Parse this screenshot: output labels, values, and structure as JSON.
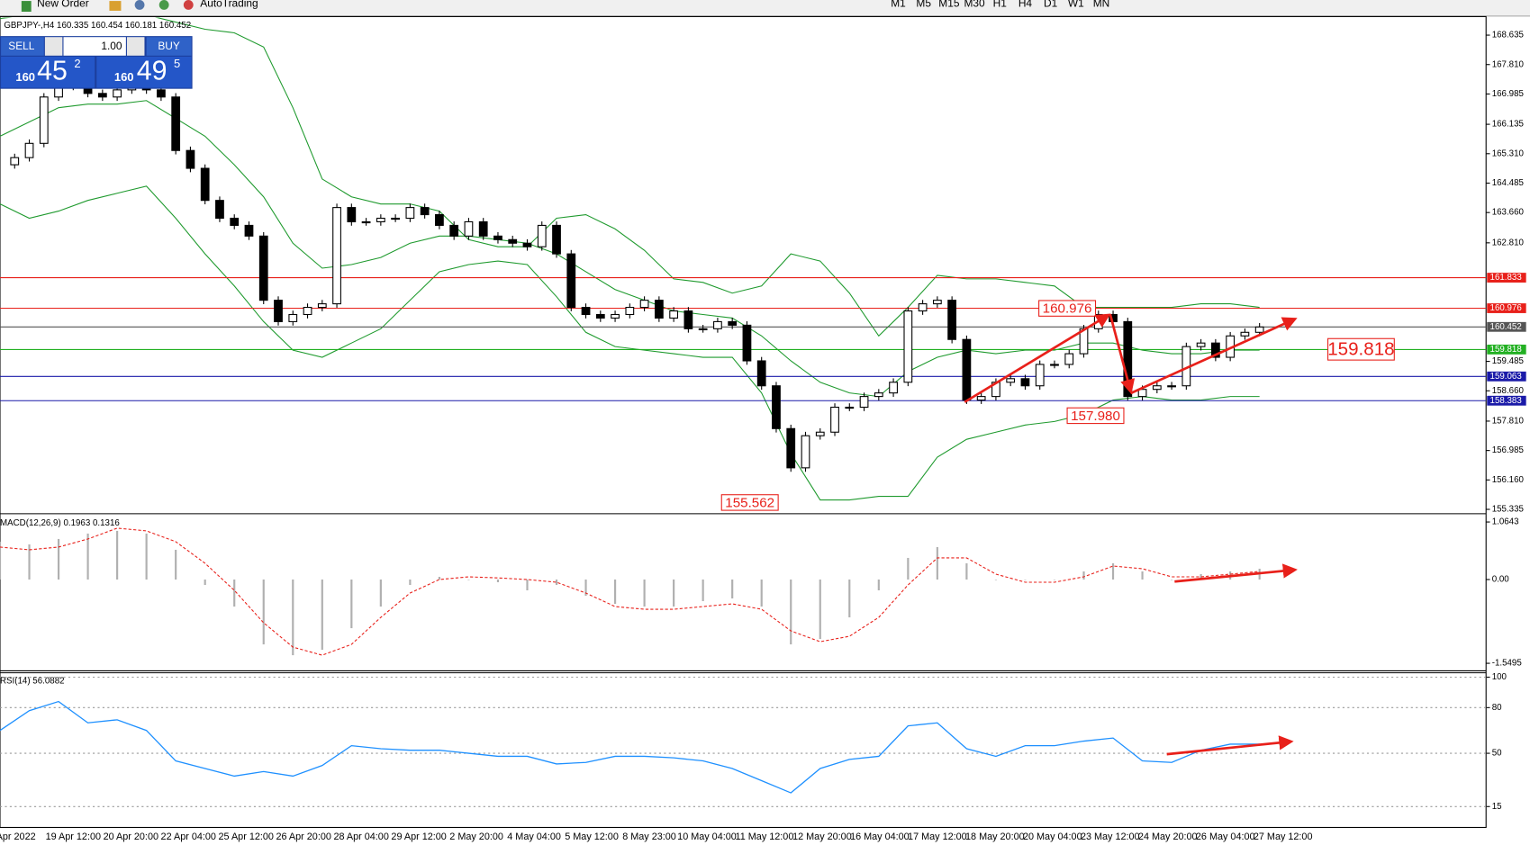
{
  "toolbar": {
    "buttons": [
      "New Order",
      "AutoTrading"
    ],
    "periods": [
      "M1",
      "M5",
      "M15",
      "M30",
      "H1",
      "H4",
      "D1",
      "W1",
      "MN"
    ]
  },
  "trade_panel": {
    "sell": "SELL",
    "buy": "BUY",
    "lots": "1.00",
    "bid": {
      "big": "160",
      "main": "45",
      "small": "2"
    },
    "ask": {
      "big": "160",
      "main": "49",
      "small": "5"
    }
  },
  "time_axis": {
    "labels": [
      "Apr 2022",
      "19 Apr 12:00",
      "20 Apr 20:00",
      "22 Apr 04:00",
      "25 Apr 12:00",
      "26 Apr 20:00",
      "28 Apr 04:00",
      "29 Apr 12:00",
      "2 May 20:00",
      "4 May 04:00",
      "5 May 12:00",
      "8 May 23:00",
      "10 May 04:00",
      "11 May 12:00",
      "12 May 20:00",
      "16 May 04:00",
      "17 May 12:00",
      "18 May 20:00",
      "20 May 04:00",
      "23 May 12:00",
      "24 May 20:00",
      "26 May 04:00",
      "27 May 12:00"
    ]
  },
  "chart_data": [
    {
      "type": "candlestick",
      "title": "GBPJPY-,H4  160.335 160.454 160.181 160.452",
      "values": [
        165.0,
        165.2,
        165.6,
        166.9,
        167.2,
        167.3,
        167.0,
        166.9,
        167.1,
        167.2,
        167.1,
        166.9,
        165.4,
        164.9,
        164.0,
        163.5,
        163.3,
        163.0,
        161.2,
        160.6,
        160.8,
        161.0,
        161.1,
        163.8,
        163.4,
        163.4,
        163.5,
        163.5,
        163.8,
        163.6,
        163.3,
        163.0,
        163.4,
        163.0,
        162.9,
        162.8,
        162.7,
        163.3,
        162.5,
        161.0,
        160.8,
        160.7,
        160.8,
        161.0,
        161.2,
        160.7,
        160.9,
        160.4,
        160.4,
        160.6,
        160.5,
        159.5,
        158.8,
        157.6,
        156.5,
        157.4,
        157.5,
        158.2,
        158.2,
        158.5,
        158.6,
        158.9,
        160.9,
        161.1,
        161.2,
        160.1,
        158.4,
        158.5,
        158.9,
        159.0,
        158.8,
        159.4,
        159.4,
        159.7,
        160.4,
        160.8,
        160.6,
        158.5,
        158.7,
        158.8,
        158.8,
        159.9,
        160.0,
        159.6,
        160.2,
        160.3,
        160.45
      ],
      "bollinger": {
        "color": "#1f9a2e",
        "upper": [
          169.1,
          169.2,
          169.3,
          169.3,
          169.3,
          169.2,
          169.0,
          168.8,
          168.7,
          168.3,
          166.6,
          164.6,
          164.1,
          163.9,
          163.9,
          163.7,
          162.9,
          162.7,
          162.7,
          163.5,
          163.6,
          163.2,
          162.6,
          161.8,
          161.7,
          161.4,
          161.6,
          162.5,
          162.3,
          161.4,
          160.2,
          161.0,
          161.9,
          161.8,
          161.8,
          161.7,
          161.6,
          161.0,
          161.0,
          161.0,
          161.0,
          161.1,
          161.1,
          161.0
        ],
        "middle": [
          165.8,
          166.2,
          166.6,
          166.7,
          166.7,
          166.8,
          166.3,
          165.8,
          165.0,
          164.1,
          162.8,
          162.1,
          162.2,
          162.4,
          162.8,
          163.0,
          163.0,
          162.9,
          162.8,
          162.5,
          162.0,
          161.5,
          161.2,
          160.9,
          160.8,
          160.7,
          160.2,
          159.5,
          158.9,
          158.6,
          158.5,
          159.2,
          159.6,
          159.8,
          159.7,
          159.8,
          159.8,
          160.0,
          160.0,
          159.8,
          159.7,
          159.7,
          159.8,
          159.8
        ],
        "lower": [
          163.9,
          163.5,
          163.7,
          164.0,
          164.2,
          164.4,
          163.5,
          162.5,
          161.6,
          160.6,
          159.8,
          159.6,
          160.0,
          160.4,
          161.2,
          162.0,
          162.2,
          162.3,
          162.2,
          161.3,
          160.3,
          159.9,
          159.8,
          159.7,
          159.6,
          159.6,
          158.6,
          156.9,
          155.6,
          155.6,
          155.7,
          155.7,
          156.8,
          157.3,
          157.5,
          157.7,
          157.8,
          158.0,
          158.4,
          158.5,
          158.4,
          158.4,
          158.5,
          158.5
        ]
      },
      "levels": [
        {
          "value": 161.833,
          "color": "#e8201a"
        },
        {
          "value": 160.976,
          "color": "#e8201a"
        },
        {
          "value": 160.452,
          "color": "#555555"
        },
        {
          "value": 159.818,
          "color": "#22b022"
        },
        {
          "value": 159.063,
          "color": "#1a1aa8"
        },
        {
          "value": 158.383,
          "color": "#1a1aa8"
        }
      ],
      "annotations": [
        "160.976",
        "157.980",
        "155.562",
        "159.818"
      ],
      "ylim": [
        155.226,
        169.128
      ],
      "yticks": [
        168.635,
        {
          "value": 167.81,
          "label": "167.810"
        },
        166.985,
        166.135,
        {
          "value": 165.31,
          "label": "165.310"
        },
        164.485,
        {
          "value": 163.66,
          "label": "163.660"
        },
        {
          "value": 162.81,
          "label": "162.810"
        },
        159.485,
        {
          "value": 158.66,
          "label": "158.660"
        },
        {
          "value": 157.81,
          "label": "157.810"
        },
        156.985,
        {
          "value": 156.16,
          "label": "156.160"
        },
        155.335
      ]
    },
    {
      "type": "macd",
      "title": "MACD(12,26,9) 0.1963 0.1316",
      "hist_color": "#b0b0b0",
      "signal_color": "#e8201a",
      "values": [
        0.7,
        0.65,
        0.75,
        0.85,
        0.9,
        0.85,
        0.55,
        -0.1,
        -0.5,
        -1.2,
        -1.4,
        -1.3,
        -0.9,
        -0.5,
        -0.1,
        0.05,
        0.0,
        -0.05,
        -0.2,
        -0.1,
        -0.3,
        -0.45,
        -0.5,
        -0.5,
        -0.4,
        -0.35,
        -0.5,
        -1.2,
        -1.1,
        -0.7,
        -0.2,
        0.4,
        0.6,
        0.3,
        0.0,
        0.0,
        0.0,
        0.15,
        0.3,
        0.15,
        0.0,
        0.1,
        0.15,
        0.2
      ],
      "signal": [
        0.6,
        0.55,
        0.6,
        0.75,
        0.95,
        0.9,
        0.7,
        0.3,
        -0.2,
        -0.8,
        -1.25,
        -1.4,
        -1.2,
        -0.7,
        -0.25,
        0.0,
        0.05,
        0.03,
        0.0,
        -0.05,
        -0.25,
        -0.5,
        -0.55,
        -0.55,
        -0.5,
        -0.45,
        -0.55,
        -0.95,
        -1.15,
        -1.05,
        -0.7,
        -0.1,
        0.4,
        0.4,
        0.1,
        -0.05,
        -0.05,
        0.05,
        0.25,
        0.2,
        0.05,
        0.05,
        0.1,
        0.15
      ],
      "ylim": [
        -1.68,
        1.19
      ],
      "yticks": [
        1.0643,
        {
          "value": 0,
          "label": "0.00"
        },
        -1.5495
      ]
    },
    {
      "type": "oscillator",
      "title": "RSI(14) 56.0882",
      "color": "#1e90ff",
      "grid": true,
      "values": [
        65,
        78,
        84,
        70,
        72,
        65,
        45,
        40,
        35,
        38,
        35,
        42,
        55,
        53,
        52,
        52,
        50,
        48,
        48,
        43,
        44,
        48,
        48,
        47,
        45,
        40,
        32,
        24,
        40,
        46,
        48,
        68,
        70,
        53,
        48,
        55,
        55,
        58,
        60,
        45,
        44,
        52,
        56,
        56
      ],
      "ylim": [
        0,
        100
      ],
      "yticks": [
        100,
        80,
        50,
        15
      ]
    }
  ]
}
